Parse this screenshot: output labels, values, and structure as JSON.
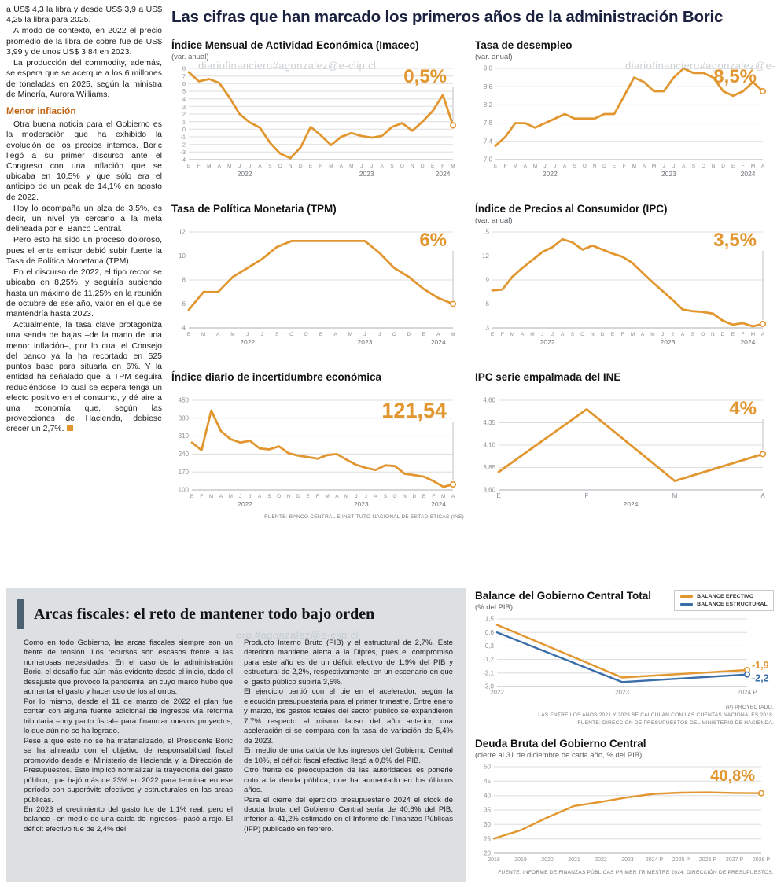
{
  "page": {
    "headline": "Las cifras que han marcado los primeros años de la administración Boric",
    "watermark": "diariofinanciero#agonzalez@e-clip.cl",
    "watermark_fragment": "ero.#agonzalez@e-clip.cl"
  },
  "left_article": {
    "paragraphs": [
      "a US$ 4,3 la libra y desde US$ 3,9 a US$ 4,25 la libra para 2025.",
      "A modo de contexto, en 2022 el precio promedio de la libra de cobre fue de US$ 3,99 y de unos US$ 3,84 en 2023.",
      "La producción del commodity, además, se espera que se acerque a los 6 millones de toneladas en 2025, según la ministra de Minería, Aurora Williams."
    ],
    "subhead": "Menor inflación",
    "paragraphs2": [
      "Otra buena noticia para el Gobierno es la moderación que ha exhibido la evolución de los precios internos. Boric llegó a su primer discurso ante el Congreso con una inflación que se ubicaba en 10,5% y que sólo era el anticipo de un peak de 14,1% en agosto de 2022.",
      "Hoy lo acompaña un alza de 3,5%, es decir, un nivel ya cercano a la meta delineada por el Banco Central.",
      "Pero esto ha sido un proceso doloroso, pues el ente emisor debió subir fuerte la Tasa de Política Monetaria (TPM).",
      "En el discurso de 2022, el tipo rector se ubicaba en 8,25%, y seguiría subiendo hasta un máximo de 11,25% en la reunión de octubre de ese año, valor en el que se mantendría hasta 2023.",
      "Actualmente, la tasa clave protagoniza una senda de bajas –de la mano de una menor inflación–, por lo cual el Consejo del banco ya la ha recortado en 525 puntos base para situarla en 6%. Y la entidad ha señalado que la TPM seguirá reduciéndose, lo cual se espera tenga un efecto positivo en el consumo, y dé aire a una economía que, según las proyecciones de Hacienda, debiese crecer un 2,7%."
    ]
  },
  "fiscal_section": {
    "title": "Arcas fiscales: el reto de mantener todo bajo orden",
    "col1": [
      "Como en todo Gobierno, las arcas fiscales siempre son un frente de tensión. Los recursos son escasos frente a las numerosas necesidades. En el caso de la administración Boric, el desafío fue aún más evidente desde el inicio, dado el desajuste que provocó la pandemia, en cuyo marco hubo que aumentar el gasto y hacer uso de los ahorros.",
      "Por lo mismo, desde el 11 de marzo de 2022 el plan fue contar con alguna fuente adicional de ingresos vía reforma tributaria –hoy pacto fiscal– para financiar nuevos proyectos, lo que aún no se ha logrado.",
      "Pese a que esto no se ha materializado, el Presidente Boric se ha alineado con el objetivo de responsabilidad fiscal promovido desde el Ministerio de Hacienda y la Dirección de Presupuestos. Esto implicó normalizar la trayectoria del gasto público, que bajó más de 23% en 2022 para terminar en ese período con superávits efectivos y estructurales en las arcas públicas.",
      "En 2023 el crecimiento del gasto fue de 1,1% real, pero el balance –en medio de una caída de ingresos– pasó a rojo. El déficit efectivo fue de 2,4% del"
    ],
    "col2": [
      "Producto Interno Bruto (PIB) y el estructural de 2,7%. Este deterioro mantiene alerta a la Dipres, pues el compromiso para este año es de un déficit efectivo de 1,9% del PIB y estructural de 2,2%, respectivamente, en un escenario en que el gasto público subiría 3,5%.",
      "El ejercicio partió con el pie en el acelerador, según la ejecución presupuestaria para el primer trimestre. Entre enero y marzo, los gastos totales del sector público se expandieron 7,7% respecto al mismo lapso del año anterior, una aceleración si se compara con la tasa de variación de 5,4% de 2023.",
      "En medio de una caída de los ingresos del Gobierno Central de 10%, el déficit fiscal efectivo llegó a 0,8% del PIB.",
      "Otro frente de preocupación de las autoridades es ponerle coto a la deuda pública, que ha aumentado en los últimos años.",
      "Para el cierre del ejercicio presupuestario 2024 el stock de deuda bruta del Gobierno Central sería de 40,6% del PIB, inferior al 41,2% estimado en el Informe de Finanzas Públicas (IFP) publicado en febrero."
    ]
  },
  "chart_data": [
    {
      "id": "imacec",
      "type": "line",
      "title": "Índice Mensual de Actividad Económica (Imacec)",
      "subtitle": "(var. anual)",
      "big_label": "0,5%",
      "accent": "#e2962f",
      "ylim": [
        -4,
        8
      ],
      "tfs": 7.5,
      "ml": 22,
      "yticks": [
        [
          8,
          "8"
        ],
        [
          7,
          "7"
        ],
        [
          6,
          "6"
        ],
        [
          5,
          "5"
        ],
        [
          4,
          "4"
        ],
        [
          3,
          "3"
        ],
        [
          2,
          "2"
        ],
        [
          1,
          "1"
        ],
        [
          0,
          "0"
        ],
        [
          -1,
          "-1"
        ],
        [
          -2,
          "-2"
        ],
        [
          -3,
          "-3"
        ],
        [
          -4,
          "-4"
        ]
      ],
      "x_labels": [
        "E",
        "F",
        "M",
        "A",
        "M",
        "J",
        "J",
        "A",
        "S",
        "O",
        "N",
        "D",
        "E",
        "F",
        "M",
        "A",
        "M",
        "J",
        "J",
        "A",
        "S",
        "O",
        "N",
        "D",
        "E",
        "F",
        "M"
      ],
      "year_marks": [
        {
          "label": "2022",
          "i0": 0,
          "i1": 11
        },
        {
          "label": "2023",
          "i0": 12,
          "i1": 23
        },
        {
          "label": "2024",
          "i0": 24,
          "i1": 26
        }
      ],
      "series": [
        {
          "name": "Imacec",
          "color": "#e2962f",
          "values": [
            7.5,
            6.3,
            6.6,
            6.1,
            4.2,
            2.0,
            0.9,
            0.2,
            -1.8,
            -3.2,
            -3.8,
            -2.4,
            0.3,
            -0.8,
            -2.1,
            -1.0,
            -0.5,
            -0.9,
            -1.1,
            -0.9,
            0.3,
            0.8,
            -0.2,
            1.0,
            2.4,
            4.5,
            0.5
          ]
        }
      ],
      "end_dot": true,
      "end_guide": true
    },
    {
      "id": "unemp",
      "type": "line",
      "title": "Tasa de desempleo",
      "subtitle": "(var. anual)",
      "big_label": "8,5%",
      "accent": "#e2962f",
      "ylim": [
        7.0,
        9.0
      ],
      "ml": 26,
      "yticks": [
        [
          9.0,
          "9,0"
        ],
        [
          8.6,
          "8,6"
        ],
        [
          8.2,
          "8,2"
        ],
        [
          7.8,
          "7,8"
        ],
        [
          7.4,
          "7,4"
        ],
        [
          7.0,
          "7,0"
        ]
      ],
      "x_labels": [
        "E",
        "F",
        "M",
        "A",
        "M",
        "J",
        "J",
        "A",
        "S",
        "O",
        "N",
        "D",
        "E",
        "F",
        "M",
        "A",
        "M",
        "J",
        "J",
        "A",
        "S",
        "O",
        "N",
        "D",
        "E",
        "F",
        "M",
        "A"
      ],
      "year_marks": [
        {
          "label": "2022",
          "i0": 0,
          "i1": 11
        },
        {
          "label": "2023",
          "i0": 12,
          "i1": 23
        },
        {
          "label": "2024",
          "i0": 24,
          "i1": 27
        }
      ],
      "series": [
        {
          "name": "Desempleo",
          "color": "#e2962f",
          "values": [
            7.3,
            7.5,
            7.8,
            7.8,
            7.7,
            7.8,
            7.9,
            8.0,
            7.9,
            7.9,
            7.9,
            8.0,
            8.0,
            8.4,
            8.8,
            8.7,
            8.5,
            8.5,
            8.8,
            9.0,
            8.9,
            8.9,
            8.8,
            8.5,
            8.4,
            8.5,
            8.7,
            8.5
          ]
        }
      ],
      "end_dot": true,
      "end_guide": true
    },
    {
      "id": "tpm",
      "type": "line",
      "title": "Tasa de Política Monetaria (TPM)",
      "subtitle": "",
      "big_label": "6%",
      "accent": "#e2962f",
      "ylim": [
        4,
        12
      ],
      "ml": 22,
      "yticks": [
        [
          12,
          "12"
        ],
        [
          10,
          "10"
        ],
        [
          8,
          "8"
        ],
        [
          6,
          "6"
        ],
        [
          4,
          "4"
        ]
      ],
      "x_labels": [
        "E",
        "M",
        "A",
        "M",
        "J",
        "J",
        "S",
        "O",
        "D",
        "E",
        "A",
        "M",
        "J",
        "J",
        "O",
        "D",
        "E",
        "A",
        "M"
      ],
      "year_marks": [
        {
          "label": "2022",
          "i0": 0,
          "i1": 8
        },
        {
          "label": "2023",
          "i0": 9,
          "i1": 15
        },
        {
          "label": "2024",
          "i0": 16,
          "i1": 18
        }
      ],
      "series": [
        {
          "name": "TPM",
          "color": "#e2962f",
          "values": [
            5.5,
            7.0,
            7.0,
            8.25,
            9.0,
            9.75,
            10.75,
            11.25,
            11.25,
            11.25,
            11.25,
            11.25,
            11.25,
            10.25,
            9.0,
            8.25,
            7.25,
            6.5,
            6.0
          ]
        }
      ],
      "end_dot": true,
      "end_guide": true
    },
    {
      "id": "ipc",
      "type": "line",
      "title": "Índice de Precios al Consumidor (IPC)",
      "subtitle": "(var. anual)",
      "big_label": "3,5%",
      "accent": "#e2962f",
      "ylim": [
        3,
        15
      ],
      "ml": 22,
      "yticks": [
        [
          15,
          "15"
        ],
        [
          12,
          "12"
        ],
        [
          9,
          "9"
        ],
        [
          6,
          "6"
        ],
        [
          3,
          "3"
        ]
      ],
      "x_labels": [
        "E",
        "F",
        "M",
        "A",
        "M",
        "J",
        "J",
        "A",
        "S",
        "O",
        "N",
        "D",
        "E",
        "F",
        "M",
        "A",
        "M",
        "J",
        "J",
        "A",
        "S",
        "O",
        "N",
        "D",
        "E",
        "F",
        "M",
        "A"
      ],
      "year_marks": [
        {
          "label": "2022",
          "i0": 0,
          "i1": 11
        },
        {
          "label": "2023",
          "i0": 12,
          "i1": 23
        },
        {
          "label": "2024",
          "i0": 24,
          "i1": 27
        }
      ],
      "series": [
        {
          "name": "IPC",
          "color": "#e2962f",
          "values": [
            7.7,
            7.8,
            9.4,
            10.5,
            11.5,
            12.5,
            13.1,
            14.1,
            13.7,
            12.8,
            13.3,
            12.8,
            12.3,
            11.9,
            11.1,
            9.9,
            8.7,
            7.6,
            6.5,
            5.3,
            5.1,
            5.0,
            4.8,
            3.9,
            3.4,
            3.6,
            3.2,
            3.5
          ]
        }
      ],
      "end_dot": true,
      "end_guide": true
    },
    {
      "id": "uncert",
      "type": "line",
      "title": "Índice diario de incertidumbre económica",
      "subtitle": "",
      "big_label": "121,54",
      "bl_fs": 27,
      "bl_dy": 22,
      "accent": "#e2962f",
      "ylim": [
        100,
        450
      ],
      "ml": 26,
      "yticks": [
        [
          450,
          "450"
        ],
        [
          380,
          "380"
        ],
        [
          310,
          "310"
        ],
        [
          240,
          "240"
        ],
        [
          170,
          "170"
        ],
        [
          100,
          "100"
        ]
      ],
      "x_labels": [
        "E",
        "F",
        "M",
        "A",
        "M",
        "J",
        "J",
        "A",
        "S",
        "O",
        "N",
        "D",
        "E",
        "F",
        "M",
        "A",
        "M",
        "J",
        "J",
        "A",
        "S",
        "O",
        "N",
        "D",
        "E",
        "F",
        "M",
        "A"
      ],
      "year_marks": [
        {
          "label": "2022",
          "i0": 0,
          "i1": 11
        },
        {
          "label": "2023",
          "i0": 12,
          "i1": 23
        },
        {
          "label": "2024",
          "i0": 24,
          "i1": 27
        }
      ],
      "series": [
        {
          "name": "Incertidumbre",
          "color": "#e2962f",
          "values": [
            285,
            255,
            410,
            330,
            298,
            285,
            292,
            262,
            258,
            270,
            243,
            234,
            228,
            222,
            236,
            240,
            218,
            198,
            186,
            178,
            196,
            193,
            163,
            158,
            152,
            134,
            112,
            121.54
          ]
        }
      ],
      "end_dot": true,
      "end_guide": true,
      "notes": [
        "FUENTE: BANCO CENTRAL E INSTITUTO NACIONAL DE ESTADÍSTICAS (INE)"
      ]
    },
    {
      "id": "spliced",
      "type": "line",
      "title": "IPC serie empalmada del INE",
      "subtitle": "",
      "big_label": "4%",
      "accent": "#e2962f",
      "ylim": [
        3.6,
        4.6
      ],
      "ml": 30,
      "xfs": 8,
      "yticks": [
        [
          4.6,
          "4,60"
        ],
        [
          4.35,
          "4,35"
        ],
        [
          4.1,
          "4,10"
        ],
        [
          3.85,
          "3,85"
        ],
        [
          3.6,
          "3,60"
        ]
      ],
      "x_labels": [
        "E",
        "F",
        "M",
        "A"
      ],
      "year_marks": [
        {
          "label": "2024",
          "i0": 0,
          "i1": 3
        }
      ],
      "series": [
        {
          "name": "IPC empalmado",
          "color": "#e2962f",
          "values": [
            3.8,
            4.5,
            3.7,
            4.0
          ]
        }
      ],
      "end_dot": true,
      "end_guide": true
    },
    {
      "id": "balance",
      "type": "line",
      "title": "Balance del Gobierno Central Total",
      "subtitle": "(% del PIB)",
      "ylim": [
        -3.0,
        1.5
      ],
      "ml": 28,
      "mr": 34,
      "xfs": 8,
      "lw": 2.4,
      "yticks": [
        [
          1.5,
          "1,5"
        ],
        [
          0.6,
          "0,6"
        ],
        [
          -0.3,
          "-0,3"
        ],
        [
          -1.2,
          "-1,2"
        ],
        [
          -2.1,
          "-2,1"
        ],
        [
          -3.0,
          "-3,0"
        ]
      ],
      "x_labels": [
        "2022",
        "2023",
        "2024 P"
      ],
      "series": [
        {
          "name": "Balance efectivo",
          "color": "#e2962f",
          "values": [
            1.1,
            -2.4,
            -1.9
          ]
        },
        {
          "name": "Balance estructural",
          "color": "#3a6ea8",
          "values": [
            0.6,
            -2.7,
            -2.2
          ]
        }
      ],
      "end_dot": true,
      "end_labels": [
        "-1,9",
        "-2,2"
      ],
      "end_label_dy": [
        -2,
        9
      ],
      "legend": [
        {
          "label": "BALANCE EFECTIVO",
          "color": "#e2962f"
        },
        {
          "label": "BALANCE ESTRUCTURAL",
          "color": "#3a6ea8"
        }
      ],
      "notes": [
        "(P) PROYECTADO.",
        "LAS ENTRE LOS AÑOS 2021 Y 2023 SE CALCULAN  CON LAS CUENTAS NACIONALES 2018.",
        "FUENTE: DIRECCIÓN DE PRESUPUESTOS DEL MINISTERIO DE HACIENDA."
      ]
    },
    {
      "id": "debt",
      "type": "line",
      "title": "Deuda Bruta del Gobierno Central",
      "subtitle": "(cierre al 31 de diciembre de cada año, % del PIB)",
      "big_label": "40,8%",
      "bl_fs": 20,
      "accent": "#e2962f",
      "ylim": [
        20,
        50
      ],
      "ml": 24,
      "mr": 16,
      "xfs": 7,
      "lw": 2.4,
      "yticks": [
        [
          50,
          "50"
        ],
        [
          45,
          "45"
        ],
        [
          40,
          "40"
        ],
        [
          35,
          "35"
        ],
        [
          30,
          "30"
        ],
        [
          25,
          "25"
        ],
        [
          20,
          "20"
        ]
      ],
      "x_labels": [
        "2018",
        "2019",
        "2020",
        "2021",
        "2022",
        "2023",
        "2024 P",
        "2025 P",
        "2026 P",
        "2027 P",
        "2028 P"
      ],
      "series": [
        {
          "name": "Deuda bruta",
          "color": "#e2962f",
          "values": [
            25.1,
            28.0,
            32.4,
            36.4,
            37.8,
            39.4,
            40.6,
            41.0,
            41.1,
            40.9,
            40.8
          ]
        }
      ],
      "end_dot": true,
      "notes": [
        "FUENTE: INFORME DE FINANZAS PÚBLICAS PRIMER TRIMESTRE 2024, DIRECCIÓN DE PRESUPUESTOS."
      ]
    }
  ]
}
